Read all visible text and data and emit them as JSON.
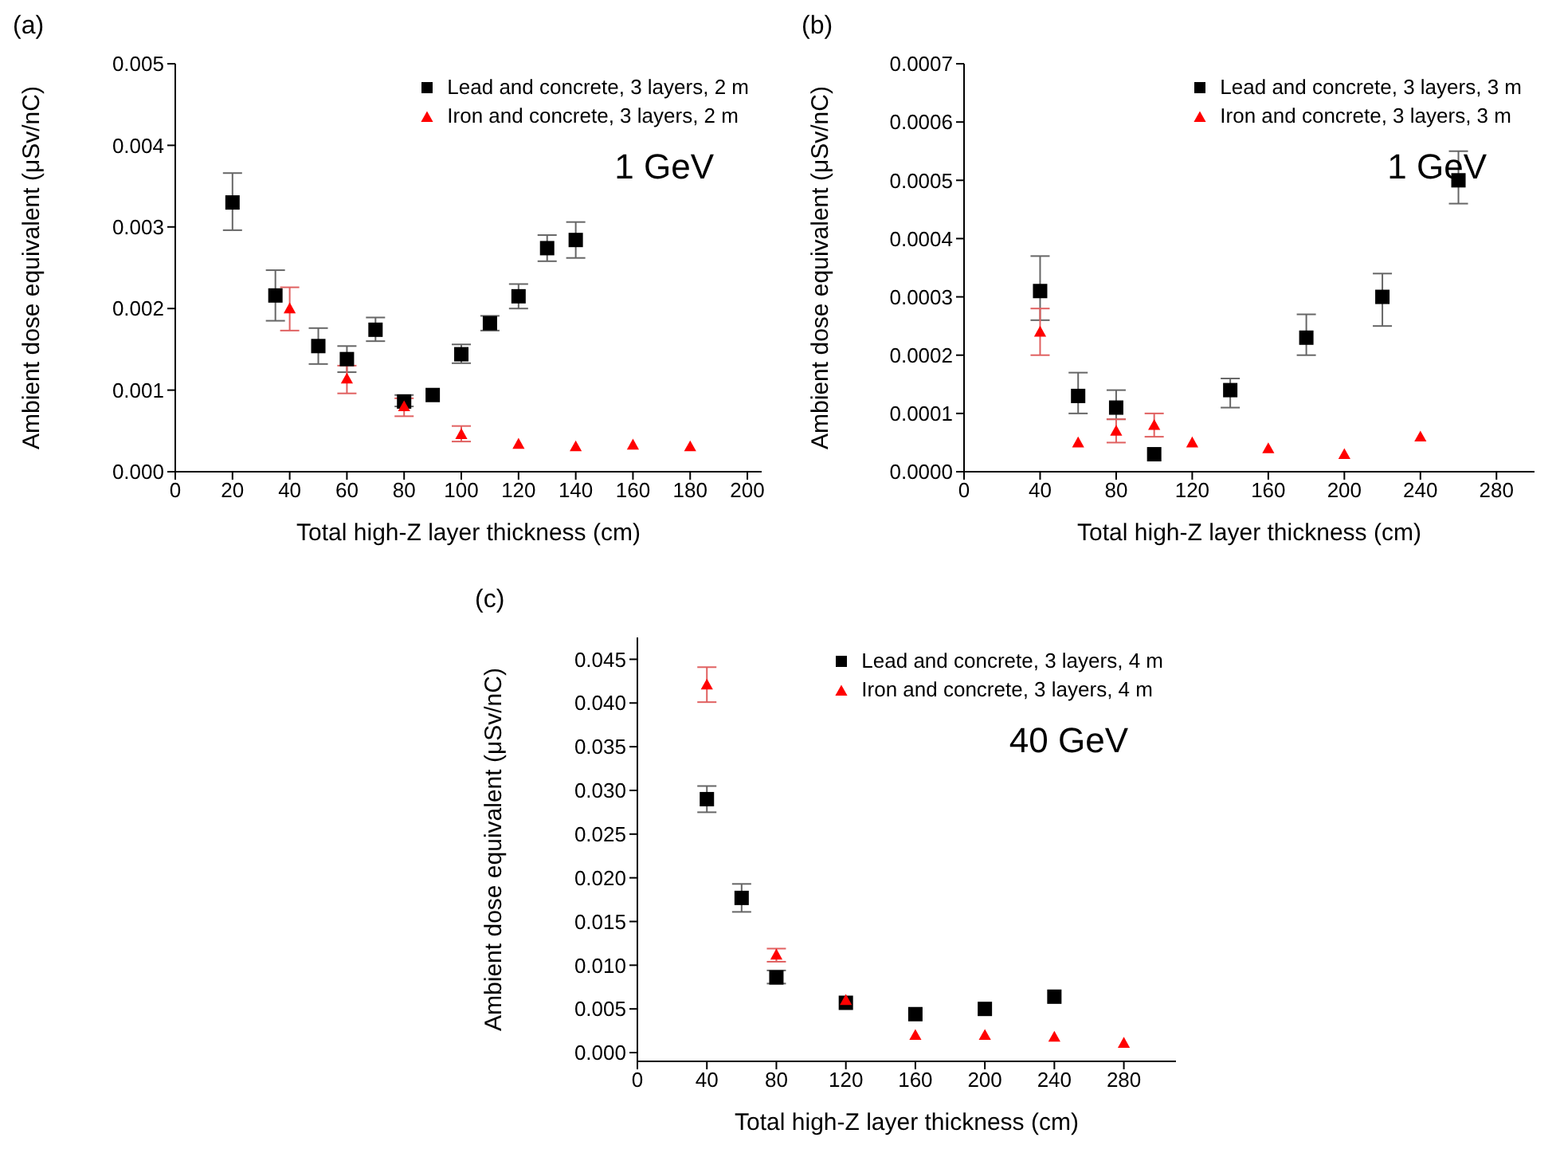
{
  "chart_data": [
    {
      "type": "scatter",
      "annotations": [
        "(a)",
        "1 GeV"
      ],
      "xlabel": "Total high-Z layer thickness (cm)",
      "ylabel": "Ambient dose equivalent (μSv/nC)",
      "xlim": [
        0,
        205
      ],
      "xticks": [
        0,
        20,
        40,
        60,
        80,
        100,
        120,
        140,
        160,
        180,
        200
      ],
      "ylim": [
        0,
        0.005
      ],
      "yticks": [
        {
          "value": 0,
          "label": "0.000"
        },
        0.001,
        0.002,
        0.003,
        0.004,
        0.005
      ],
      "legend": "top right",
      "grid": false,
      "series": [
        {
          "name": "Lead and concrete, 3 layers, 2 m",
          "color": "#000000",
          "marker": "square",
          "x": [
            20,
            35,
            50,
            60,
            70,
            80,
            90,
            100,
            110,
            120,
            130,
            140
          ],
          "values": [
            0.0033,
            0.00216,
            0.00154,
            0.00138,
            0.00174,
            0.00086,
            0.00094,
            0.00144,
            0.00182,
            0.00215,
            0.00274,
            0.00284
          ],
          "errors": [
            [
              0.00296,
              0.00366
            ],
            [
              0.00185,
              0.00247
            ],
            [
              0.00132,
              0.00176
            ],
            [
              0.00122,
              0.00154
            ],
            [
              0.0016,
              0.00189
            ],
            [
              0.0008,
              0.00094
            ],
            null,
            [
              0.00133,
              0.00156
            ],
            [
              0.00173,
              0.00191
            ],
            [
              0.002,
              0.0023
            ],
            [
              0.00258,
              0.0029
            ],
            [
              0.00262,
              0.00306
            ]
          ]
        },
        {
          "name": "Iron and concrete, 3 layers, 2 m",
          "color": "#ff0000",
          "marker": "triangle",
          "x": [
            40,
            60,
            80,
            100,
            120,
            140,
            160,
            180
          ],
          "values": [
            0.002,
            0.00114,
            0.0008,
            0.00046,
            0.00034,
            0.00031,
            0.00033,
            0.00031
          ],
          "errors": [
            [
              0.00173,
              0.00226
            ],
            [
              0.00096,
              0.0013
            ],
            [
              0.00068,
              0.0009
            ],
            [
              0.00037,
              0.00056
            ],
            null,
            null,
            null,
            null
          ]
        }
      ]
    },
    {
      "type": "scatter",
      "annotations": [
        "(b)",
        "1 GeV"
      ],
      "xlabel": "Total high-Z layer thickness (cm)",
      "ylabel": "Ambient dose equivalent (μSv/nC)",
      "xlim": [
        0,
        300
      ],
      "xticks": [
        0,
        40,
        80,
        120,
        160,
        200,
        240,
        280
      ],
      "ylim": [
        0,
        0.0007
      ],
      "yticks": [
        {
          "value": 0,
          "label": "0.0000"
        },
        0.0001,
        0.0002,
        0.0003,
        0.0004,
        0.0005,
        0.0006,
        0.0007
      ],
      "legend": "top right",
      "grid": false,
      "series": [
        {
          "name": "Lead and concrete, 3 layers, 3 m",
          "color": "#000000",
          "marker": "square",
          "x": [
            40,
            60,
            80,
            100,
            140,
            180,
            220,
            260
          ],
          "values": [
            0.00031,
            0.00013,
            0.00011,
            3e-05,
            0.00014,
            0.00023,
            0.0003,
            0.0005
          ],
          "errors": [
            [
              0.00026,
              0.00037
            ],
            [
              0.0001,
              0.00017
            ],
            [
              9e-05,
              0.00014
            ],
            null,
            [
              0.00011,
              0.00016
            ],
            [
              0.0002,
              0.00027
            ],
            [
              0.00025,
              0.00034
            ],
            [
              0.00046,
              0.00055
            ]
          ]
        },
        {
          "name": "Iron and concrete, 3 layers, 3 m",
          "color": "#ff0000",
          "marker": "triangle",
          "x": [
            40,
            60,
            80,
            100,
            120,
            160,
            200,
            240
          ],
          "values": [
            0.00024,
            5e-05,
            7e-05,
            8e-05,
            5e-05,
            4e-05,
            3e-05,
            6e-05
          ],
          "errors": [
            [
              0.0002,
              0.00028
            ],
            null,
            [
              5e-05,
              9e-05
            ],
            [
              6e-05,
              0.0001
            ],
            null,
            null,
            null,
            null
          ]
        }
      ]
    },
    {
      "type": "scatter",
      "annotations": [
        "(c)",
        "40 GeV"
      ],
      "xlabel": "Total high-Z layer thickness (cm)",
      "ylabel": "Ambient dose equivalent (μSv/nC)",
      "xlim": [
        0,
        310
      ],
      "xticks": [
        0,
        40,
        80,
        120,
        160,
        200,
        240,
        280
      ],
      "ylim": [
        -0.001,
        0.0475
      ],
      "yticks": [
        {
          "value": 0,
          "label": "0.000"
        },
        0.005,
        {
          "value": 0.01,
          "label": "0.010"
        },
        0.015,
        {
          "value": 0.02,
          "label": "0.020"
        },
        0.025,
        {
          "value": 0.03,
          "label": "0.030"
        },
        0.035,
        {
          "value": 0.04,
          "label": "0.040"
        },
        0.045
      ],
      "legend": "top right",
      "grid": false,
      "series": [
        {
          "name": "Lead and concrete, 3 layers, 4 m",
          "color": "#000000",
          "marker": "square",
          "x": [
            40,
            60,
            80,
            120,
            160,
            200,
            240
          ],
          "values": [
            0.029,
            0.0177,
            0.0086,
            0.0057,
            0.0044,
            0.005,
            0.0064
          ],
          "errors": [
            [
              0.0275,
              0.0305
            ],
            [
              0.0161,
              0.0193
            ],
            [
              0.0079,
              0.0094
            ],
            null,
            null,
            null,
            null
          ]
        },
        {
          "name": "Iron and concrete, 3 layers, 4 m",
          "color": "#ff0000",
          "marker": "triangle",
          "x": [
            40,
            80,
            120,
            160,
            200,
            240,
            280
          ],
          "values": [
            0.0421,
            0.0112,
            0.006,
            0.002,
            0.002,
            0.0018,
            0.0011
          ],
          "errors": [
            [
              0.0401,
              0.0441
            ],
            [
              0.0104,
              0.0119
            ],
            null,
            null,
            null,
            null,
            null
          ]
        }
      ]
    }
  ]
}
